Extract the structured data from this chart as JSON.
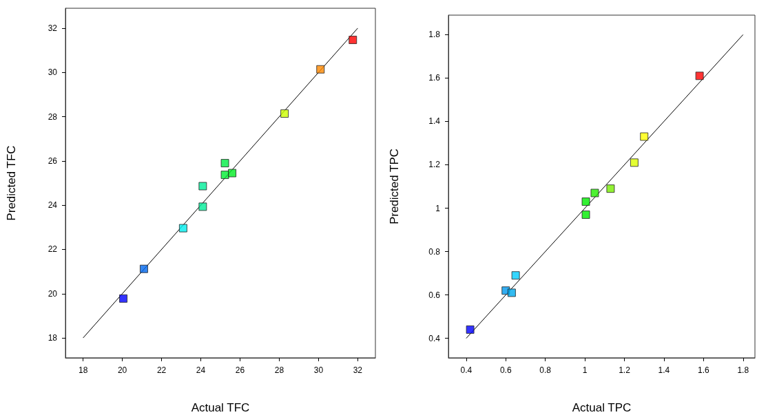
{
  "chart_data": [
    {
      "type": "scatter",
      "xlabel": "Actual TFC",
      "ylabel": "Predicted TFC",
      "xlim": [
        17.1,
        32.9
      ],
      "ylim": [
        17.1,
        32.9
      ],
      "xticks": [
        18,
        20,
        22,
        24,
        26,
        28,
        30,
        32
      ],
      "yticks": [
        18,
        20,
        22,
        24,
        26,
        28,
        30,
        32
      ],
      "grid": false,
      "series": [
        {
          "marker": "square",
          "x": [
            20.05,
            21.1,
            23.1,
            24.1,
            24.1,
            25.23,
            25.23,
            25.6,
            28.27,
            30.1,
            31.75
          ],
          "values": [
            19.78,
            21.12,
            22.96,
            23.93,
            24.86,
            25.9,
            25.37,
            25.45,
            28.14,
            30.14,
            31.47
          ],
          "colors": [
            "#0000ff",
            "#0066ee",
            "#00eeee",
            "#00ee99",
            "#00ee99",
            "#00ee44",
            "#00ee33",
            "#00ee22",
            "#ccff00",
            "#ff8800",
            "#ff0000"
          ]
        },
        {
          "type": "line",
          "marker": "none",
          "line_style": "solid",
          "color": "#000000",
          "x": [
            18,
            32
          ],
          "values": [
            18,
            32
          ]
        }
      ]
    },
    {
      "type": "scatter",
      "xlabel": "Actual TPC",
      "ylabel": "Predicted TPC",
      "xlim": [
        0.31,
        1.86
      ],
      "ylim": [
        0.31,
        1.89
      ],
      "xticks": [
        0.4,
        0.6,
        0.8,
        1,
        1.2,
        1.4,
        1.6,
        1.8
      ],
      "yticks": [
        0.4,
        0.6,
        0.8,
        1,
        1.2,
        1.4,
        1.6,
        1.8
      ],
      "grid": false,
      "series": [
        {
          "marker": "square",
          "x": [
            0.42,
            0.6,
            0.63,
            0.65,
            1.005,
            1.005,
            1.05,
            1.13,
            1.25,
            1.3,
            1.58
          ],
          "values": [
            0.44,
            0.62,
            0.61,
            0.69,
            0.97,
            1.03,
            1.07,
            1.09,
            1.21,
            1.33,
            1.61
          ],
          "colors": [
            "#0000ff",
            "#0099ee",
            "#00aaee",
            "#00ccff",
            "#00ee00",
            "#00ee00",
            "#22ee00",
            "#77ee00",
            "#ddff00",
            "#ffff00",
            "#ff0000"
          ]
        },
        {
          "type": "line",
          "marker": "none",
          "line_style": "solid",
          "color": "#000000",
          "x": [
            0.4,
            1.8
          ],
          "values": [
            0.4,
            1.8
          ]
        }
      ]
    }
  ]
}
